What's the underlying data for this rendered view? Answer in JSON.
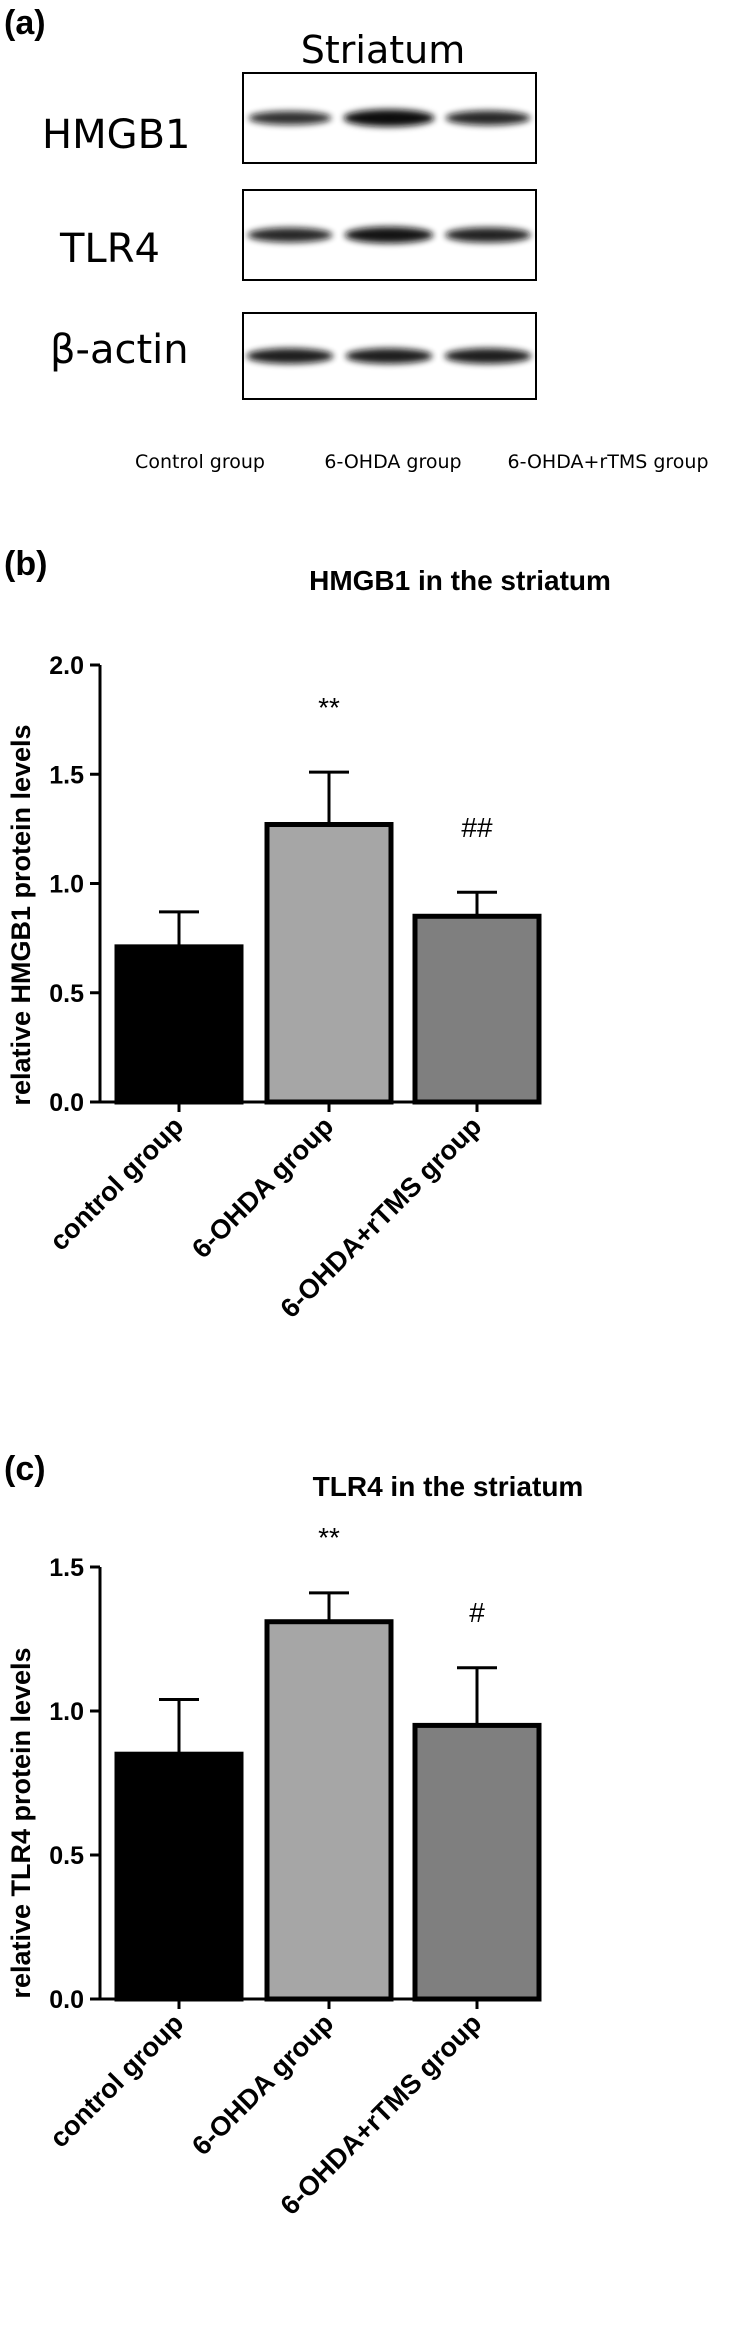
{
  "panel_a": {
    "letter": "(a)",
    "title": "Striatum",
    "rows": [
      {
        "label": "HMGB1",
        "bands": [
          0.75,
          1.15,
          0.85
        ]
      },
      {
        "label": "TLR4",
        "bands": [
          0.85,
          1.05,
          0.9
        ]
      },
      {
        "label": "β-actin",
        "bands": [
          0.95,
          0.95,
          0.95
        ]
      }
    ],
    "lanes": [
      "Control group",
      "6-OHDA group",
      "6-OHDA+rTMS group"
    ]
  },
  "chart_data": [
    {
      "panel": "(b)",
      "type": "bar",
      "title": "HMGB1 in the striatum",
      "xlabel": "",
      "ylabel": "relative HMGB1 protein levels",
      "categories": [
        "control group",
        "6-OHDA group",
        "6-OHDA+rTMS group"
      ],
      "values": [
        0.71,
        1.27,
        0.85
      ],
      "errors": [
        0.16,
        0.24,
        0.11
      ],
      "significance": [
        "",
        "**",
        "##"
      ],
      "ylim": [
        0,
        2.0
      ],
      "yticks": [
        "0.0",
        "0.5",
        "1.0",
        "1.5",
        "2.0"
      ],
      "colors": [
        "#000000",
        "#a6a6a6",
        "#7f7f7f"
      ]
    },
    {
      "panel": "(c)",
      "type": "bar",
      "title": "TLR4 in the striatum",
      "xlabel": "",
      "ylabel": "relative TLR4 protein levels",
      "categories": [
        "control group",
        "6-OHDA group",
        "6-OHDA+rTMS group"
      ],
      "values": [
        0.85,
        1.31,
        0.95
      ],
      "errors": [
        0.19,
        0.1,
        0.2
      ],
      "significance": [
        "",
        "**",
        "#"
      ],
      "ylim": [
        0,
        1.5
      ],
      "yticks": [
        "0.0",
        "0.5",
        "1.0",
        "1.5"
      ],
      "colors": [
        "#000000",
        "#a6a6a6",
        "#7f7f7f"
      ]
    }
  ]
}
